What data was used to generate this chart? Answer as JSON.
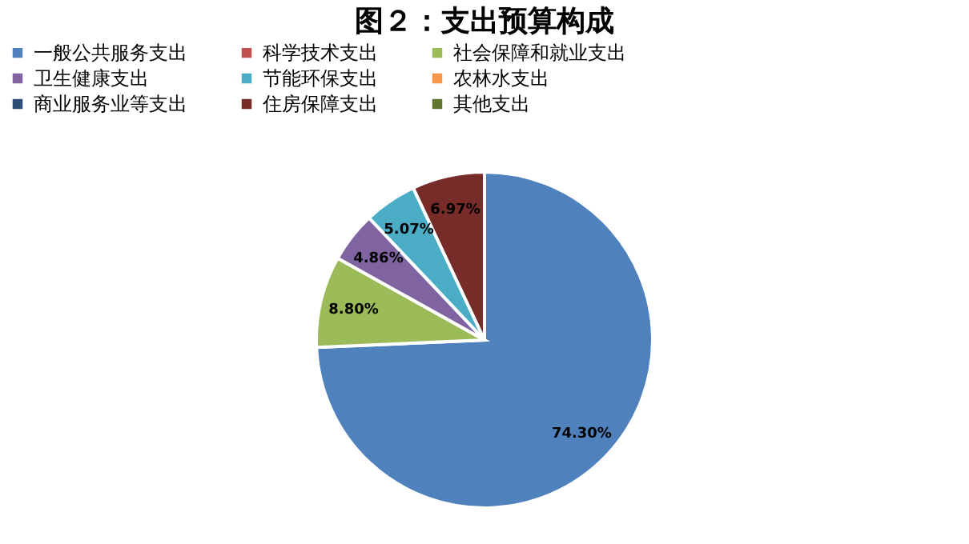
{
  "chart_data": {
    "type": "pie",
    "title": "图２：支出预算构成",
    "categories": [
      "一般公共服务支出",
      "科学技术支出",
      "社会保障和就业支出",
      "卫生健康支出",
      "节能环保支出",
      "农林水支出",
      "商业服务业等支出",
      "住房保障支出",
      "其他支出"
    ],
    "values": [
      74.3,
      0,
      8.8,
      4.86,
      5.07,
      0,
      0,
      6.97,
      0
    ],
    "value_labels": [
      "74.30%",
      null,
      "8.80%",
      "4.86%",
      "5.07%",
      null,
      null,
      "6.97%",
      null
    ],
    "colors": [
      "#4f81bd",
      "#c0504d",
      "#9bbb59",
      "#8064a2",
      "#4bacc6",
      "#f79646",
      "#2c4d75",
      "#772c2a",
      "#5f7530"
    ],
    "legend": "top"
  }
}
